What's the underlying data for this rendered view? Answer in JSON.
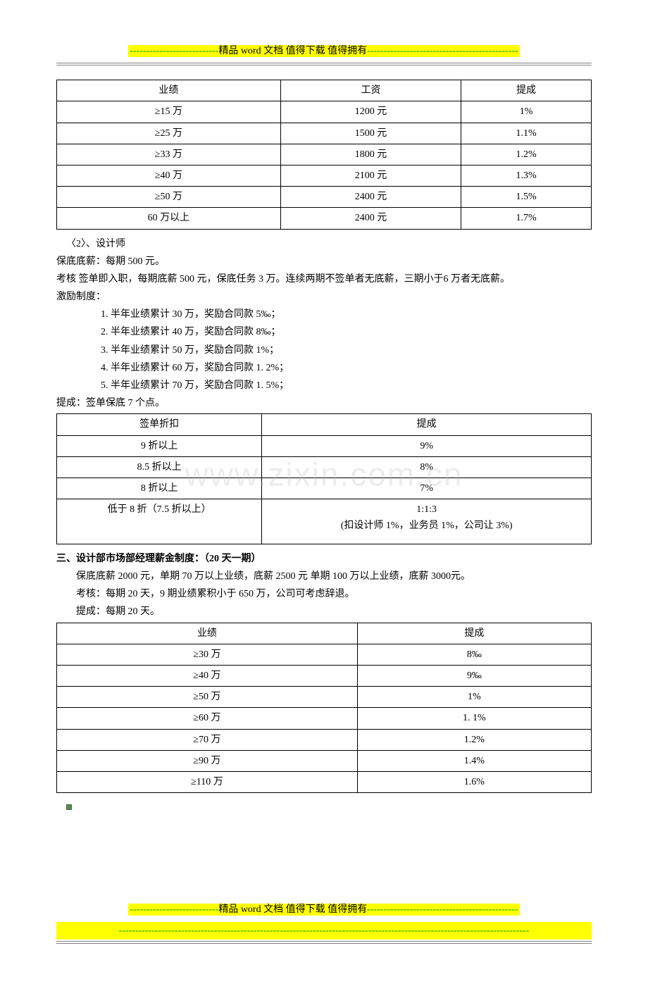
{
  "header": {
    "dashes_left": "---------------------------",
    "label": "精品 word 文档  值得下载  值得拥有",
    "dashes_right": "----------------------------------------------"
  },
  "table1": {
    "headers": [
      "业绩",
      "工资",
      "提成"
    ],
    "rows": [
      [
        "≥15 万",
        "1200 元",
        "1%"
      ],
      [
        "≥25 万",
        "1500 元",
        "1.1%"
      ],
      [
        "≥33 万",
        "1800 元",
        "1.2%"
      ],
      [
        "≥40 万",
        "2100 元",
        "1.3%"
      ],
      [
        "≥50 万",
        "2400 元",
        "1.5%"
      ],
      [
        "60 万以上",
        "2400 元",
        "1.7%"
      ]
    ]
  },
  "designer": {
    "title": "〈2〉、设计师",
    "line1": "保底底薪：每期 500 元。",
    "line2": "考核  签单即入职，每期底薪 500 元，保底任务 3 万。连续两期不签单者无底薪，三期小于6 万者无底薪。",
    "line3": "激励制度：",
    "items": [
      "1.   半年业绩累计 30 万，奖励合同款 5‰；",
      "2.   半年业绩累计 40 万，奖励合同款 8‰；",
      "3.   半年业绩累计 50 万，奖励合同款 1%；",
      "4.   半年业绩累计 60 万，奖励合同款 1. 2%；",
      "5.   半年业绩累计 70 万，奖励合同款 1. 5%；"
    ],
    "line4": "提成：签单保底 7 个点。"
  },
  "table2": {
    "headers": [
      "签单折扣",
      "提成"
    ],
    "rows": [
      [
        "9 折以上",
        "9%"
      ],
      [
        "8.5 折以上",
        "8%"
      ],
      [
        "8 折以上",
        "7%"
      ]
    ],
    "last_row": {
      "left": "低于 8 折（7.5 折以上）",
      "right_line1": "1:1:3",
      "right_line2": "(扣设计师 1%，业务员 1%，公司让 3%)"
    }
  },
  "section3": {
    "title": "三、设计部市场部经理薪金制度：（20 天一期）",
    "line1": "保底底薪 2000 元，单期 70 万以上业绩，底薪 2500 元  单期 100 万以上业绩，底薪 3000元。",
    "line2": "考核：每期 20 天，9 期业绩累积小于 650 万，公司可考虑辞退。",
    "line3": "提成：每期 20 天。"
  },
  "table3": {
    "headers": [
      "业绩",
      "提成"
    ],
    "rows": [
      [
        "≥30 万",
        "8‰"
      ],
      [
        "≥40 万",
        "9‰"
      ],
      [
        "≥50 万",
        "1%"
      ],
      [
        "≥60 万",
        "1. 1%"
      ],
      [
        "≥70 万",
        "1.2%"
      ],
      [
        "≥90 万",
        "1.4%"
      ],
      [
        "≥110 万",
        "1.6%"
      ]
    ]
  },
  "watermark": "www.zixin.com.cn",
  "footer": {
    "dashes_left": "---------------------------",
    "label": "精品 word 文档  值得下载  值得拥有",
    "dashes_right": "----------------------------------------------",
    "line2": "-----------------------------------------------------------------------------------------------------------------------------"
  }
}
